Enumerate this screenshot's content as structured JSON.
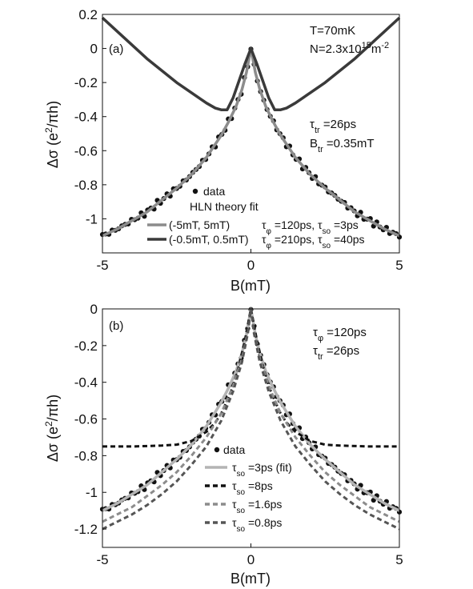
{
  "chart_data": [
    {
      "panel_label": "(a)",
      "type": "scatter",
      "xlabel": "B(mT)",
      "ylabel": "Δσ (e²/πh)",
      "xlim": [
        -5,
        5
      ],
      "ylim": [
        -1.2,
        0.2
      ],
      "xticks": [
        -5,
        0,
        5
      ],
      "yticks": [
        0.2,
        0,
        -0.2,
        -0.4,
        -0.6,
        -0.8,
        -1
      ],
      "xtick_labels": [
        "-5",
        "0",
        "5"
      ],
      "ytick_labels": [
        "0.2",
        "0",
        "-0.2",
        "-0.4",
        "-0.6",
        "-0.8",
        "-1"
      ],
      "annotations": [
        "T=70mK",
        "N=2.3x10¹⁵m⁻²",
        "τtr =26ps",
        "Btr =0.35mT"
      ],
      "legend_title": "HLN theory fit",
      "series": [
        {
          "name": "data",
          "kind": "points",
          "color": "#111111",
          "x": [
            -5,
            -4.5,
            -4,
            -3.5,
            -3,
            -2.5,
            -2,
            -1.5,
            -1,
            -0.75,
            -0.5,
            -0.3,
            -0.15,
            0,
            0.15,
            0.3,
            0.5,
            0.75,
            1,
            1.5,
            2,
            2.5,
            3,
            3.5,
            4,
            4.5,
            5
          ],
          "y": [
            -1.1,
            -1.06,
            -1.01,
            -0.96,
            -0.89,
            -0.82,
            -0.74,
            -0.64,
            -0.51,
            -0.43,
            -0.34,
            -0.24,
            -0.14,
            0,
            -0.14,
            -0.24,
            -0.34,
            -0.43,
            -0.51,
            -0.64,
            -0.74,
            -0.82,
            -0.89,
            -0.96,
            -1.01,
            -1.06,
            -1.1
          ]
        },
        {
          "name": "(-5mT, 5mT)",
          "label": "τφ =120ps, τso =3ps",
          "kind": "line",
          "color": "#8c8c8c",
          "x": [
            -5,
            -4.5,
            -4,
            -3.5,
            -3,
            -2.5,
            -2,
            -1.5,
            -1,
            -0.75,
            -0.5,
            -0.3,
            -0.15,
            0,
            0.15,
            0.3,
            0.5,
            0.75,
            1,
            1.5,
            2,
            2.5,
            3,
            3.5,
            4,
            4.5,
            5
          ],
          "y": [
            -1.1,
            -1.06,
            -1.01,
            -0.96,
            -0.89,
            -0.82,
            -0.74,
            -0.64,
            -0.51,
            -0.43,
            -0.34,
            -0.24,
            -0.14,
            0,
            -0.14,
            -0.24,
            -0.34,
            -0.43,
            -0.51,
            -0.64,
            -0.74,
            -0.82,
            -0.89,
            -0.96,
            -1.01,
            -1.06,
            -1.1
          ]
        },
        {
          "name": "(-0.5mT, 0.5mT)",
          "label": "τφ =210ps, τso =40ps",
          "kind": "line",
          "color": "#3a3a3a",
          "x": [
            -5,
            -4.5,
            -4,
            -3.5,
            -3,
            -2.5,
            -2,
            -1.5,
            -1.2,
            -1,
            -0.8,
            -0.6,
            -0.4,
            -0.2,
            0,
            0.2,
            0.4,
            0.6,
            0.8,
            1,
            1.2,
            1.5,
            2,
            2.5,
            3,
            3.5,
            4,
            4.5,
            5
          ],
          "y": [
            0.18,
            0.1,
            0.02,
            -0.06,
            -0.13,
            -0.2,
            -0.26,
            -0.32,
            -0.35,
            -0.36,
            -0.36,
            -0.29,
            -0.19,
            -0.09,
            0,
            -0.09,
            -0.19,
            -0.29,
            -0.36,
            -0.36,
            -0.35,
            -0.32,
            -0.26,
            -0.2,
            -0.13,
            -0.06,
            0.02,
            0.1,
            0.18
          ]
        }
      ]
    },
    {
      "panel_label": "(b)",
      "type": "scatter",
      "xlabel": "B(mT)",
      "ylabel": "Δσ (e²/πh)",
      "xlim": [
        -5,
        5
      ],
      "ylim": [
        -1.3,
        0
      ],
      "xticks": [
        -5,
        0,
        5
      ],
      "yticks": [
        0,
        -0.2,
        -0.4,
        -0.6,
        -0.8,
        -1,
        -1.2
      ],
      "xtick_labels": [
        "-5",
        "0",
        "5"
      ],
      "ytick_labels": [
        "0",
        "-0.2",
        "-0.4",
        "-0.6",
        "-0.8",
        "-1",
        "-1.2"
      ],
      "annotations": [
        "τφ =120ps",
        "τtr =26ps"
      ],
      "series": [
        {
          "name": "data",
          "kind": "points",
          "color": "#111111",
          "x": [
            -5,
            -4.5,
            -4,
            -3.5,
            -3,
            -2.5,
            -2,
            -1.5,
            -1,
            -0.75,
            -0.5,
            -0.3,
            -0.15,
            0,
            0.15,
            0.3,
            0.5,
            0.75,
            1,
            1.5,
            2,
            2.5,
            3,
            3.5,
            4,
            4.5,
            5
          ],
          "y": [
            -1.1,
            -1.06,
            -1.01,
            -0.96,
            -0.89,
            -0.82,
            -0.74,
            -0.64,
            -0.51,
            -0.43,
            -0.34,
            -0.24,
            -0.14,
            0,
            -0.14,
            -0.24,
            -0.34,
            -0.43,
            -0.51,
            -0.64,
            -0.74,
            -0.82,
            -0.89,
            -0.96,
            -1.01,
            -1.06,
            -1.1
          ]
        },
        {
          "name": "τso =3ps (fit)",
          "kind": "line",
          "color": "#b4b4b4",
          "x": [
            -5,
            -4.5,
            -4,
            -3.5,
            -3,
            -2.5,
            -2,
            -1.5,
            -1,
            -0.75,
            -0.5,
            -0.3,
            -0.15,
            0,
            0.15,
            0.3,
            0.5,
            0.75,
            1,
            1.5,
            2,
            2.5,
            3,
            3.5,
            4,
            4.5,
            5
          ],
          "y": [
            -1.1,
            -1.06,
            -1.01,
            -0.96,
            -0.89,
            -0.82,
            -0.74,
            -0.64,
            -0.51,
            -0.43,
            -0.34,
            -0.24,
            -0.14,
            0,
            -0.14,
            -0.24,
            -0.34,
            -0.43,
            -0.51,
            -0.64,
            -0.74,
            -0.82,
            -0.89,
            -0.96,
            -1.01,
            -1.06,
            -1.1
          ]
        },
        {
          "name": "τso =8ps",
          "kind": "dashed",
          "color": "#111111",
          "x": [
            -5,
            -4,
            -3,
            -2.5,
            -2,
            -1.5,
            -1.2,
            -1,
            -0.8,
            -0.6,
            -0.4,
            -0.2,
            0,
            0.2,
            0.4,
            0.6,
            0.8,
            1,
            1.2,
            1.5,
            2,
            2.5,
            3,
            4,
            5
          ],
          "y": [
            -0.75,
            -0.75,
            -0.745,
            -0.74,
            -0.72,
            -0.67,
            -0.62,
            -0.57,
            -0.5,
            -0.42,
            -0.31,
            -0.17,
            0,
            -0.17,
            -0.31,
            -0.42,
            -0.5,
            -0.57,
            -0.62,
            -0.67,
            -0.72,
            -0.74,
            -0.745,
            -0.75,
            -0.75
          ]
        },
        {
          "name": "τso =1.6ps",
          "kind": "dashed",
          "color": "#8c8c8c",
          "x": [
            -5,
            -4.5,
            -4,
            -3.5,
            -3,
            -2.5,
            -2,
            -1.5,
            -1,
            -0.6,
            -0.3,
            -0.1,
            0,
            0.1,
            0.3,
            0.6,
            1,
            1.5,
            2,
            2.5,
            3,
            3.5,
            4,
            4.5,
            5
          ],
          "y": [
            -1.16,
            -1.12,
            -1.08,
            -1.02,
            -0.96,
            -0.89,
            -0.8,
            -0.7,
            -0.57,
            -0.42,
            -0.27,
            -0.12,
            0,
            -0.12,
            -0.27,
            -0.42,
            -0.57,
            -0.7,
            -0.8,
            -0.89,
            -0.96,
            -1.02,
            -1.08,
            -1.12,
            -1.16
          ]
        },
        {
          "name": "τso =0.8ps",
          "kind": "dashed",
          "color": "#555555",
          "x": [
            -5,
            -4.5,
            -4,
            -3.5,
            -3,
            -2.5,
            -2,
            -1.5,
            -1,
            -0.6,
            -0.3,
            -0.1,
            0,
            0.1,
            0.3,
            0.6,
            1,
            1.5,
            2,
            2.5,
            3,
            3.5,
            4,
            4.5,
            5
          ],
          "y": [
            -1.2,
            -1.16,
            -1.12,
            -1.07,
            -1.01,
            -0.94,
            -0.85,
            -0.75,
            -0.61,
            -0.45,
            -0.29,
            -0.13,
            0,
            -0.13,
            -0.29,
            -0.45,
            -0.61,
            -0.75,
            -0.85,
            -0.94,
            -1.01,
            -1.07,
            -1.12,
            -1.16,
            -1.2
          ]
        }
      ]
    }
  ]
}
